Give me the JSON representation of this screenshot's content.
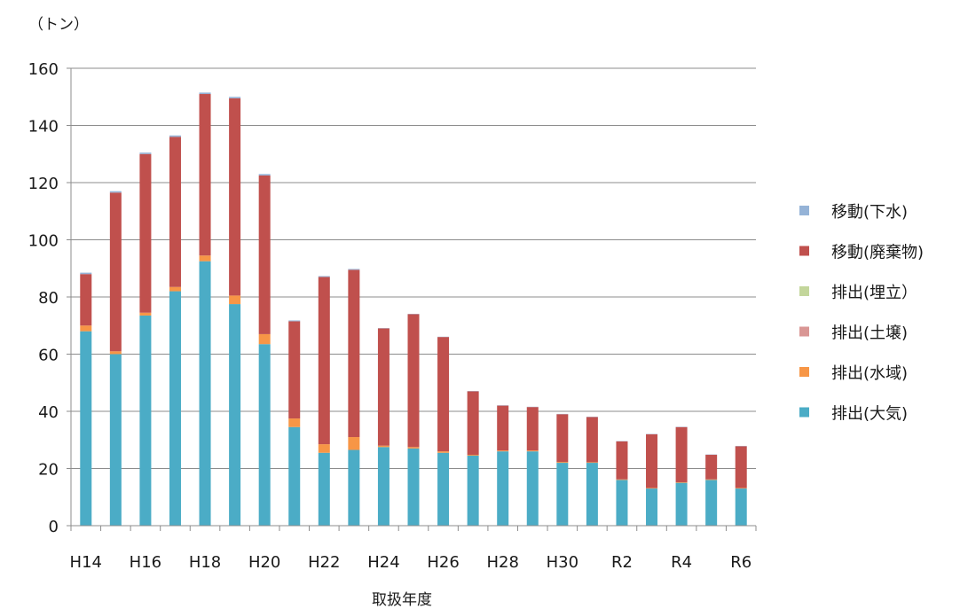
{
  "chart_data": {
    "type": "bar",
    "stacked": true,
    "unit_label": "（トン）",
    "xlabel": "取扱年度",
    "ylim": [
      0,
      160
    ],
    "yticks": [
      0,
      20,
      40,
      60,
      80,
      100,
      120,
      140,
      160
    ],
    "grid": true,
    "legend_position": "right",
    "categories": [
      "H14",
      "H15",
      "H16",
      "H17",
      "H18",
      "H19",
      "H20",
      "H21",
      "H22",
      "H23",
      "H24",
      "H25",
      "H26",
      "H27",
      "H28",
      "H29",
      "H30",
      "R1",
      "R2",
      "R3",
      "R4",
      "R5",
      "R6"
    ],
    "tick_labels": [
      "H14",
      "",
      "H16",
      "",
      "H18",
      "",
      "H20",
      "",
      "H22",
      "",
      "H24",
      "",
      "H26",
      "",
      "H28",
      "",
      "H30",
      "",
      "R2",
      "",
      "R4",
      "",
      "R6"
    ],
    "series": [
      {
        "name": "排出(大気)",
        "color": "#4bacc6",
        "values": [
          68,
          60,
          73.5,
          82,
          92.5,
          77.5,
          63.5,
          34.5,
          25.5,
          26.5,
          27.5,
          27,
          25.5,
          24.5,
          26,
          26,
          22,
          22,
          16,
          13,
          15,
          16,
          13
        ]
      },
      {
        "name": "排出(水域)",
        "color": "#f79646",
        "values": [
          2,
          1,
          1,
          1.5,
          2,
          3,
          3.5,
          3,
          3,
          4.5,
          0.5,
          0.5,
          0.5,
          0.3,
          0.3,
          0.3,
          0.3,
          0.2,
          0.2,
          0.2,
          0.2,
          0.2,
          0.2
        ]
      },
      {
        "name": "排出(土壌)",
        "color": "#d99694",
        "values": [
          0,
          0,
          0,
          0,
          0,
          0,
          0,
          0,
          0,
          0,
          0,
          0,
          0,
          0,
          0,
          0,
          0,
          0,
          0,
          0,
          0,
          0,
          0
        ]
      },
      {
        "name": "排出(埋立）",
        "color": "#c3d69b",
        "values": [
          0,
          0,
          0,
          0,
          0,
          0,
          0,
          0,
          0,
          0,
          0,
          0,
          0,
          0,
          0,
          0,
          0,
          0,
          0,
          0,
          0,
          0,
          0
        ]
      },
      {
        "name": "移動(廃棄物)",
        "color": "#c0504d",
        "values": [
          18,
          55.5,
          55.5,
          52.5,
          56.5,
          69,
          55.5,
          34,
          58.5,
          58.5,
          41,
          46.5,
          40,
          22.2,
          15.7,
          15.2,
          16.7,
          15.8,
          13.3,
          18.8,
          19.3,
          8.6,
          14.6
        ]
      },
      {
        "name": "移動(下水)",
        "color": "#95b3d7",
        "values": [
          0.5,
          0.5,
          0.5,
          0.5,
          0.5,
          0.5,
          0.5,
          0.3,
          0.3,
          0.3,
          0.1,
          0.1,
          0.1,
          0.1,
          0.1,
          0.1,
          0.1,
          0.1,
          0.1,
          0.1,
          0.1,
          0.1,
          0.1
        ]
      }
    ],
    "legend_order": [
      "移動(下水)",
      "移動(廃棄物)",
      "排出(埋立）",
      "排出(土壌)",
      "排出(水域)",
      "排出(大気)"
    ]
  }
}
